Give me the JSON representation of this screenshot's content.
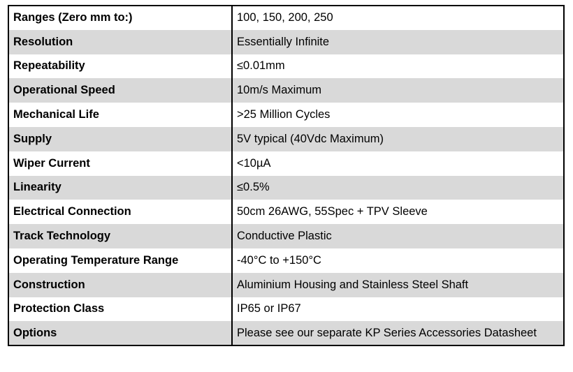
{
  "specs": [
    {
      "label": "Ranges (Zero mm to:)",
      "value": "100, 150, 200, 250"
    },
    {
      "label": "Resolution",
      "value": "Essentially Infinite"
    },
    {
      "label": "Repeatability",
      "value": "≤0.01mm"
    },
    {
      "label": "Operational Speed",
      "value": "10m/s Maximum"
    },
    {
      "label": "Mechanical Life",
      "value": ">25 Million Cycles"
    },
    {
      "label": "Supply",
      "value": "5V typical (40Vdc Maximum)"
    },
    {
      "label": "Wiper Current",
      "value": "<10µA"
    },
    {
      "label": "Linearity",
      "value": "≤0.5%"
    },
    {
      "label": "Electrical Connection",
      "value": "50cm 26AWG, 55Spec + TPV Sleeve"
    },
    {
      "label": "Track Technology",
      "value": "Conductive Plastic"
    },
    {
      "label": "Operating Temperature Range",
      "value": "-40°C to +150°C"
    },
    {
      "label": "Construction",
      "value": "Aluminium Housing and Stainless Steel Shaft"
    },
    {
      "label": "Protection Class",
      "value": "IP65 or IP67"
    },
    {
      "label": "Options",
      "value": "Please see our separate KP Series Accessories Datasheet"
    }
  ],
  "colors": {
    "shaded_row": "#d9d9d9",
    "plain_row": "#ffffff",
    "border": "#000000"
  }
}
